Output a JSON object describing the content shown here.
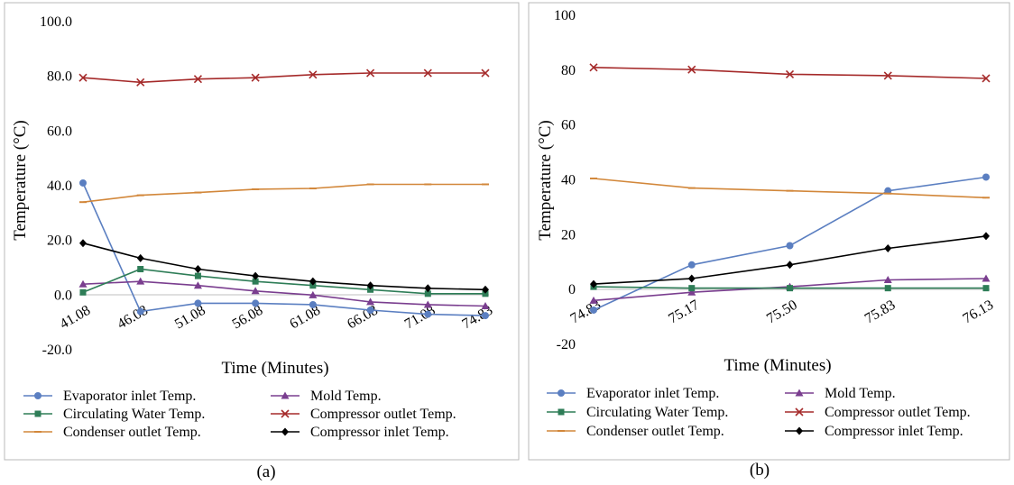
{
  "chart_data": [
    {
      "type": "line",
      "panel_label": "(a)",
      "xlabel": "Time  (Minutes)",
      "ylabel": "Temperature (°C)",
      "categories": [
        "41.08",
        "46.08",
        "51.08",
        "56.08",
        "61.08",
        "66.08",
        "71.08",
        "74.83"
      ],
      "ylim": [
        -20,
        100
      ],
      "yticks": [
        "100.0",
        "80.0",
        "60.0",
        "40.0",
        "20.0",
        "0.0",
        "-20.0"
      ],
      "ytick_values": [
        100,
        80,
        60,
        40,
        20,
        0,
        -20
      ],
      "grid": false,
      "legend_position": "bottom",
      "series": [
        {
          "name": "Evaporator inlet Temp.",
          "color": "#5b7fc1",
          "marker": "circle",
          "values": [
            41,
            -6,
            -3,
            -3,
            -3.5,
            -5.5,
            -7,
            -7.5
          ]
        },
        {
          "name": "Mold Temp.",
          "color": "#7a3e8f",
          "marker": "triangle",
          "values": [
            4,
            5,
            3.5,
            1.5,
            0,
            -2.5,
            -3.5,
            -4
          ]
        },
        {
          "name": "Circulating Water Temp.",
          "color": "#2e7d57",
          "marker": "square",
          "values": [
            1,
            9.5,
            7,
            5,
            3.5,
            2,
            0.5,
            0.5
          ]
        },
        {
          "name": "Compressor outlet Temp.",
          "color": "#a52a2a",
          "marker": "x",
          "values": [
            79.5,
            77.8,
            79,
            79.5,
            80.6,
            81.2,
            81.2,
            81.2
          ]
        },
        {
          "name": "Condenser outlet Temp.",
          "color": "#d2873a",
          "marker": "dash",
          "values": [
            34,
            36.5,
            37.5,
            38.7,
            39,
            40.5,
            40.5,
            40.5
          ]
        },
        {
          "name": "Compressor inlet Temp.",
          "color": "#000000",
          "marker": "diamond",
          "values": [
            19,
            13.5,
            9.5,
            7,
            5,
            3.5,
            2.5,
            2
          ]
        }
      ]
    },
    {
      "type": "line",
      "panel_label": "(b)",
      "xlabel": "Time  (Minutes)",
      "ylabel": "Temperature (°C)",
      "categories": [
        "74.83",
        "75.17",
        "75.50",
        "75.83",
        "76.13"
      ],
      "ylim": [
        -20,
        100
      ],
      "yticks": [
        "100",
        "80",
        "60",
        "40",
        "20",
        "0",
        "-20"
      ],
      "ytick_values": [
        100,
        80,
        60,
        40,
        20,
        0,
        -20
      ],
      "grid": false,
      "legend_position": "bottom",
      "series": [
        {
          "name": "Evaporator inlet Temp.",
          "color": "#5b7fc1",
          "marker": "circle",
          "values": [
            -7.5,
            9,
            16,
            36,
            41
          ]
        },
        {
          "name": "Mold Temp.",
          "color": "#7a3e8f",
          "marker": "triangle",
          "values": [
            -4,
            -1,
            1,
            3.5,
            4
          ]
        },
        {
          "name": "Circulating Water Temp.",
          "color": "#2e7d57",
          "marker": "square",
          "values": [
            1,
            0.5,
            0.5,
            0.5,
            0.5
          ]
        },
        {
          "name": "Compressor outlet Temp.",
          "color": "#a52a2a",
          "marker": "x",
          "values": [
            81,
            80.2,
            78.5,
            78,
            77
          ]
        },
        {
          "name": "Condenser outlet Temp.",
          "color": "#d2873a",
          "marker": "dash",
          "values": [
            40.5,
            37,
            36,
            35,
            33.5
          ]
        },
        {
          "name": "Compressor inlet Temp.",
          "color": "#000000",
          "marker": "diamond",
          "values": [
            2,
            4,
            9,
            15,
            19.5
          ]
        }
      ]
    }
  ]
}
